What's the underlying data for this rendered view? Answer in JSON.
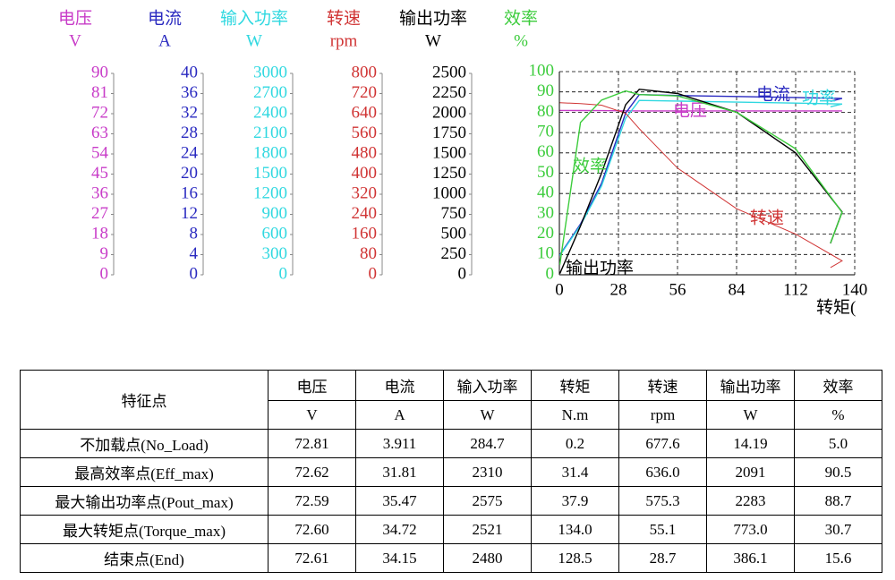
{
  "chart_data": {
    "type": "line",
    "axes": [
      {
        "name": "电压",
        "unit": "V",
        "color": "#c83cc8",
        "ylim": [
          0,
          90
        ],
        "yticks": [
          0,
          9,
          18,
          27,
          36,
          45,
          54,
          63,
          72,
          81,
          90
        ]
      },
      {
        "name": "电流",
        "unit": "A",
        "color": "#2a2ac0",
        "ylim": [
          0,
          40
        ],
        "yticks": [
          0,
          4,
          8,
          12,
          16,
          20,
          24,
          28,
          32,
          36,
          40
        ]
      },
      {
        "name": "输入功率",
        "unit": "W",
        "color": "#30d8e0",
        "ylim": [
          0,
          3000
        ],
        "yticks": [
          0,
          300,
          600,
          900,
          1200,
          1500,
          1800,
          2100,
          2400,
          2700,
          3000
        ]
      },
      {
        "name": "转速",
        "unit": "rpm",
        "color": "#d03434",
        "ylim": [
          0,
          800
        ],
        "yticks": [
          0,
          80,
          160,
          240,
          320,
          400,
          480,
          560,
          640,
          720,
          800
        ]
      },
      {
        "name": "输出功率",
        "unit": "W",
        "color": "#000000",
        "ylim": [
          0,
          2500
        ],
        "yticks": [
          0,
          250,
          500,
          750,
          1000,
          1250,
          1500,
          1750,
          2000,
          2250,
          2500
        ]
      },
      {
        "name": "效率",
        "unit": "%",
        "color": "#3ccc3c",
        "ylim": [
          0,
          100
        ],
        "yticks": [
          0,
          10,
          20,
          30,
          40,
          50,
          60,
          70,
          80,
          90,
          100
        ]
      }
    ],
    "x": [
      0.2,
      10,
      20,
      31.4,
      37.9,
      56,
      84,
      112,
      134,
      128.5
    ],
    "xlim": [
      0,
      140
    ],
    "xticks": [
      0,
      28,
      56,
      84,
      112,
      140
    ],
    "xlabel": "转矩(",
    "grid": true,
    "series": [
      {
        "name": "电压",
        "color": "#c83cc8",
        "axis": 0,
        "values": [
          72.81,
          72.75,
          72.7,
          72.62,
          72.59,
          72.6,
          72.6,
          72.6,
          72.6,
          72.61
        ]
      },
      {
        "name": "电流",
        "color": "#2a2ac0",
        "axis": 1,
        "values": [
          3.911,
          10,
          18,
          31.81,
          35.47,
          35.3,
          35.1,
          34.9,
          34.72,
          34.15
        ]
      },
      {
        "name": "功率",
        "color": "#30d8e0",
        "axis": 2,
        "values": [
          284.7,
          730,
          1310,
          2310,
          2575,
          2565,
          2550,
          2535,
          2521,
          2480
        ]
      },
      {
        "name": "转速",
        "color": "#d03434",
        "axis": 3,
        "values": [
          677.6,
          674,
          668,
          636.0,
          575.3,
          420,
          260,
          160,
          55.1,
          28.7
        ]
      },
      {
        "name": "输出功率",
        "color": "#000000",
        "axis": 4,
        "values": [
          14.19,
          600,
          1250,
          2091,
          2283,
          2230,
          2000,
          1500,
          773.0,
          386.1
        ]
      },
      {
        "name": "效率",
        "color": "#3ccc3c",
        "axis": 5,
        "values": [
          5.0,
          75,
          86,
          90.5,
          88.7,
          88,
          80,
          62,
          30.7,
          15.6
        ]
      }
    ]
  },
  "table": {
    "corner": "特征点",
    "headers": [
      "电压",
      "电流",
      "输入功率",
      "转矩",
      "转速",
      "输出功率",
      "效率"
    ],
    "units": [
      "V",
      "A",
      "W",
      "N.m",
      "rpm",
      "W",
      "%"
    ],
    "rows": [
      [
        "不加载点(No_Load)",
        "72.81",
        "3.911",
        "284.7",
        "0.2",
        "677.6",
        "14.19",
        "5.0"
      ],
      [
        "最高效率点(Eff_max)",
        "72.62",
        "31.81",
        "2310",
        "31.4",
        "636.0",
        "2091",
        "90.5"
      ],
      [
        "最大输出功率点(Pout_max)",
        "72.59",
        "35.47",
        "2575",
        "37.9",
        "575.3",
        "2283",
        "88.7"
      ],
      [
        "最大转矩点(Torque_max)",
        "72.60",
        "34.72",
        "2521",
        "134.0",
        "55.1",
        "773.0",
        "30.7"
      ],
      [
        "结束点(End)",
        "72.61",
        "34.15",
        "2480",
        "128.5",
        "28.7",
        "386.1",
        "15.6"
      ]
    ]
  }
}
